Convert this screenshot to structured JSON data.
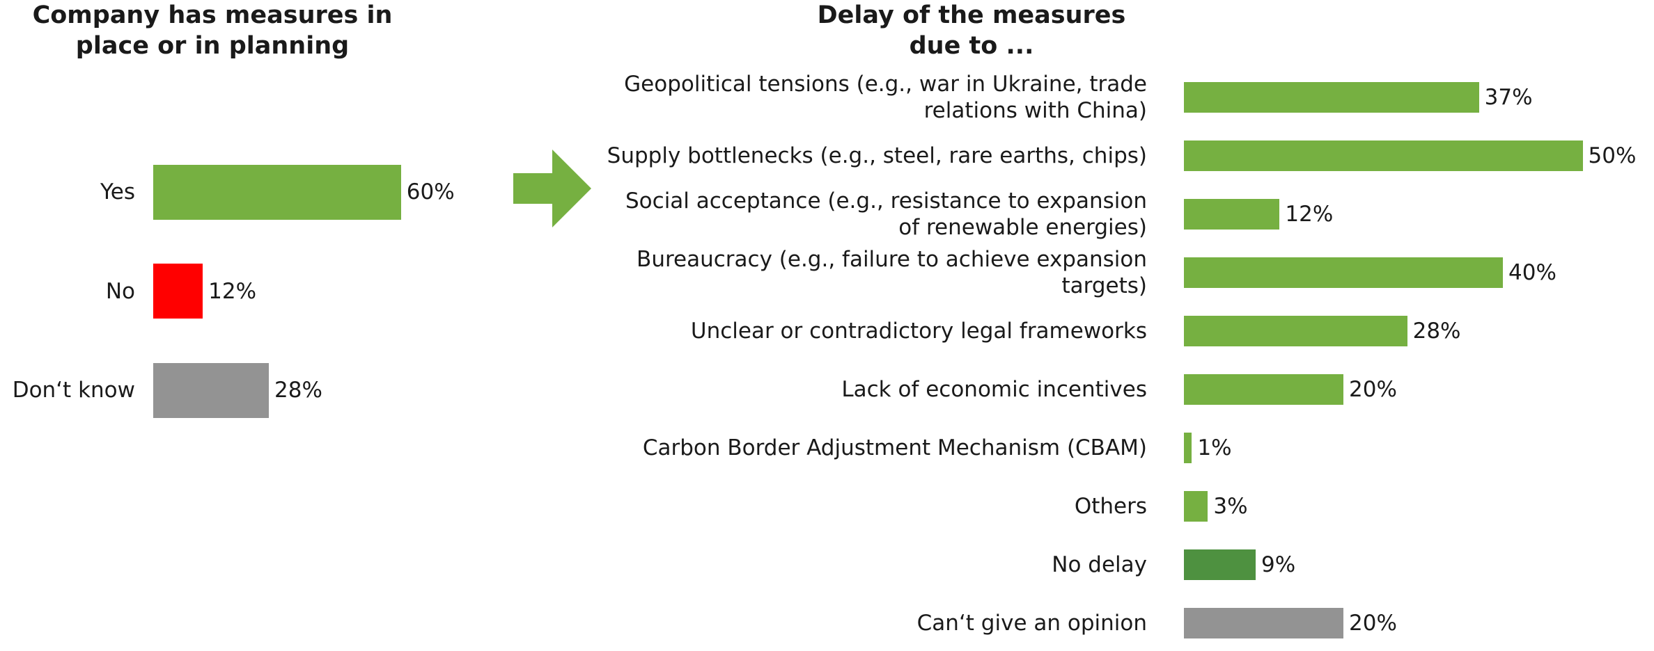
{
  "chart_data": [
    {
      "type": "bar",
      "orientation": "horizontal",
      "title": "Company has measures in place or in planning",
      "categories": [
        "Yes",
        "No",
        "Don‘t know"
      ],
      "values": [
        60,
        12,
        28
      ],
      "value_labels": [
        "60%",
        "12%",
        "28%"
      ],
      "colors": [
        "#76b041",
        "#ff0000",
        "#939393"
      ]
    },
    {
      "type": "bar",
      "orientation": "horizontal",
      "title": "Delay of the measures due to ...",
      "categories": [
        "Geopolitical tensions (e.g., war in Ukraine, trade relations with China)",
        "Supply bottlenecks (e.g., steel, rare earths, chips)",
        "Social acceptance (e.g., resistance to expansion of renewable energies)",
        "Bureaucracy (e.g., failure to achieve expansion targets)",
        "Unclear or contradictory legal frameworks",
        "Lack of economic incentives",
        "Carbon Border Adjustment Mechanism (CBAM)",
        "Others",
        "No delay",
        "Can‘t give an opinion"
      ],
      "values": [
        37,
        50,
        12,
        40,
        28,
        20,
        1,
        3,
        9,
        20
      ],
      "value_labels": [
        "37%",
        "50%",
        "12%",
        "40%",
        "28%",
        "20%",
        "1%",
        "3%",
        "9%",
        "20%"
      ],
      "colors": [
        "#76b041",
        "#76b041",
        "#76b041",
        "#76b041",
        "#76b041",
        "#76b041",
        "#76b041",
        "#76b041",
        "#4e9140",
        "#939393"
      ]
    }
  ]
}
